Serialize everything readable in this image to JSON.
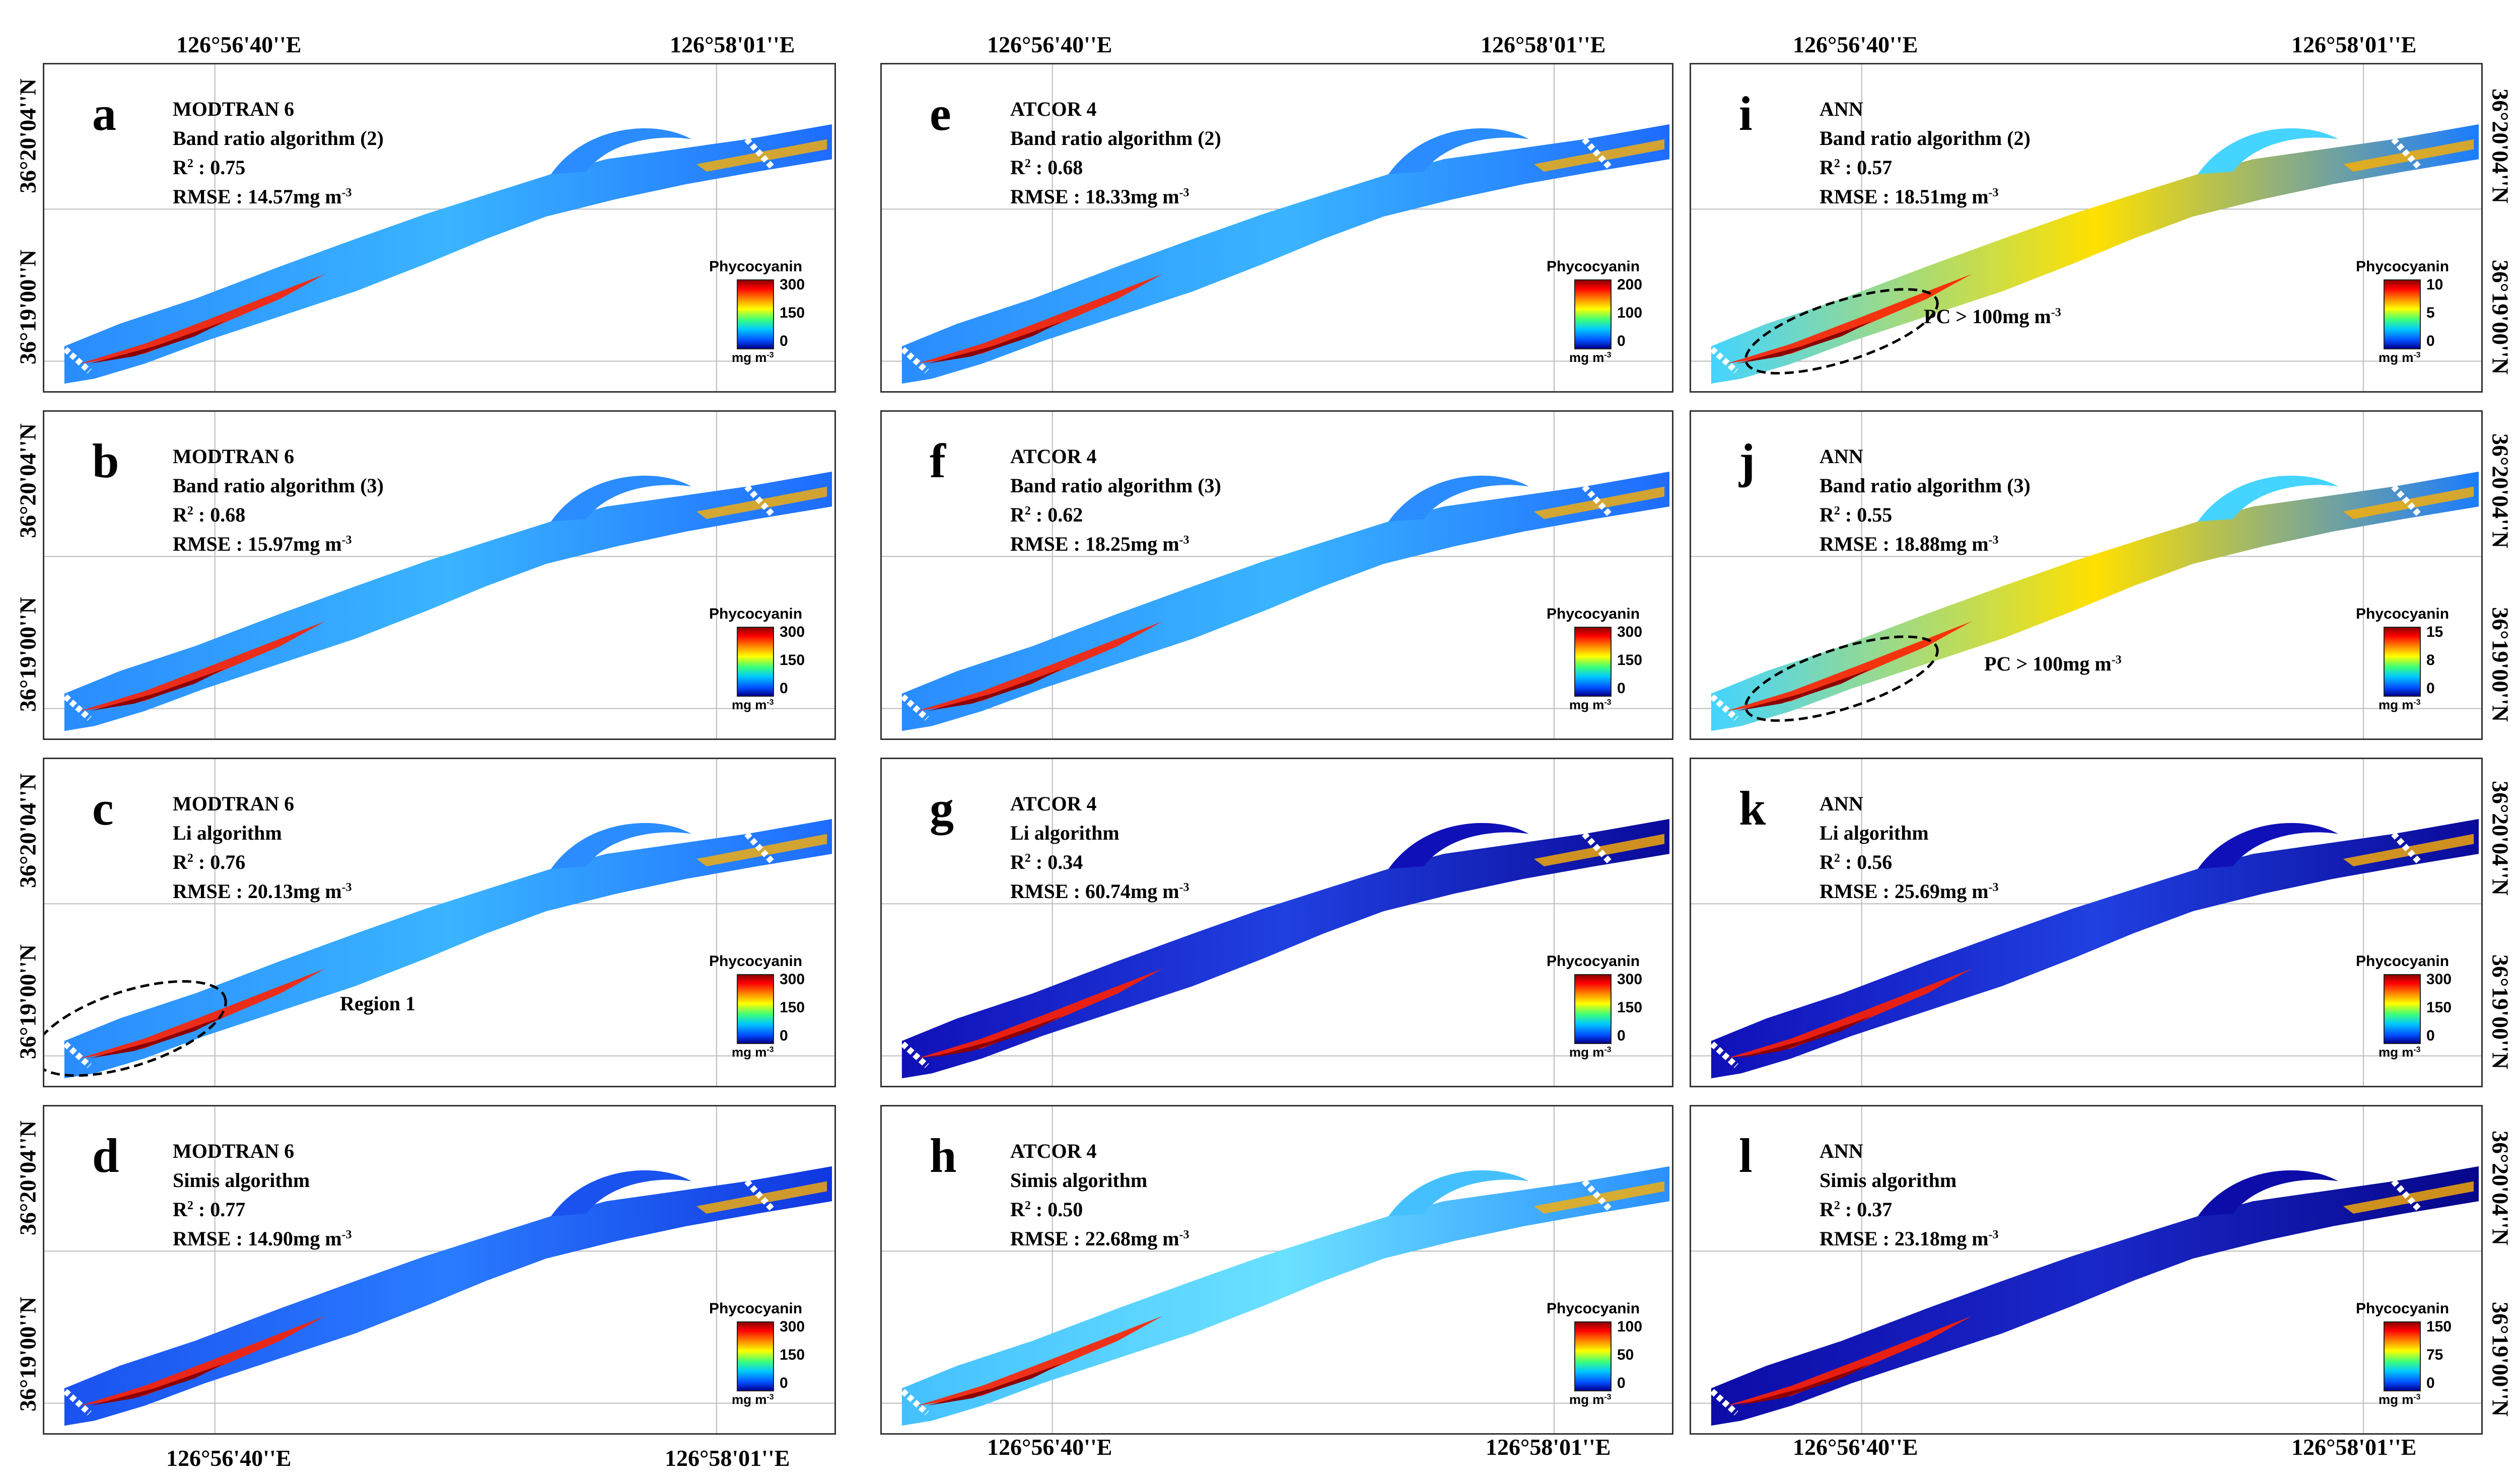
{
  "coords": {
    "lon_west": "126°56'40''E",
    "lon_east": "126°58'01''E",
    "lat_north": "36°20'04''N",
    "lat_south": "36°19'00''N"
  },
  "legend_title": "Phycocyanin",
  "legend_unit_base": "mg m",
  "legend_unit_exp": "-3",
  "rmse_exp": "-3",
  "panels": [
    {
      "letter": "a",
      "sensor": "MODTRAN 6",
      "algorithm": "Band ratio algorithm (2)",
      "r2_label": "R",
      "r2_sup": "2",
      "r2_value": " : 0.75",
      "rmse": "RMSE : 14.57mg m",
      "scale": [
        "300",
        "150",
        "0"
      ],
      "style": "low"
    },
    {
      "letter": "b",
      "sensor": "MODTRAN 6",
      "algorithm": "Band ratio algorithm (3)",
      "r2_label": "R",
      "r2_sup": "2",
      "r2_value": " : 0.68",
      "rmse": "RMSE : 15.97mg m",
      "scale": [
        "300",
        "150",
        "0"
      ],
      "style": "low"
    },
    {
      "letter": "c",
      "sensor": "MODTRAN 6",
      "algorithm": "Li algorithm",
      "r2_label": "R",
      "r2_sup": "2",
      "r2_value": " : 0.76",
      "rmse": "RMSE : 20.13mg m",
      "scale": [
        "300",
        "150",
        "0"
      ],
      "style": "low"
    },
    {
      "letter": "d",
      "sensor": "MODTRAN 6",
      "algorithm": "Simis algorithm",
      "r2_label": "R",
      "r2_sup": "2",
      "r2_value": " : 0.77",
      "rmse": "RMSE : 14.90mg m",
      "scale": [
        "300",
        "150",
        "0"
      ],
      "style": "vlow"
    },
    {
      "letter": "e",
      "sensor": "ATCOR 4",
      "algorithm": "Band ratio algorithm (2)",
      "r2_label": "R",
      "r2_sup": "2",
      "r2_value": " : 0.68",
      "rmse": "RMSE : 18.33mg m",
      "scale": [
        "200",
        "100",
        "0"
      ],
      "style": "low"
    },
    {
      "letter": "f",
      "sensor": "ATCOR 4",
      "algorithm": "Band ratio algorithm (3)",
      "r2_label": "R",
      "r2_sup": "2",
      "r2_value": " : 0.62",
      "rmse": "RMSE : 18.25mg m",
      "scale": [
        "300",
        "150",
        "0"
      ],
      "style": "low"
    },
    {
      "letter": "g",
      "sensor": "ATCOR 4",
      "algorithm": "Li algorithm",
      "r2_label": "R",
      "r2_sup": "2",
      "r2_value": " : 0.34",
      "rmse": "RMSE : 60.74mg m",
      "scale": [
        "300",
        "150",
        "0"
      ],
      "style": "dark"
    },
    {
      "letter": "h",
      "sensor": "ATCOR 4",
      "algorithm": "Simis algorithm",
      "r2_label": "R",
      "r2_sup": "2",
      "r2_value": " : 0.50",
      "rmse": "RMSE : 22.68mg m",
      "scale": [
        "100",
        "50",
        "0"
      ],
      "style": "mid"
    },
    {
      "letter": "i",
      "sensor": "ANN",
      "algorithm": "Band ratio algorithm (2)",
      "r2_label": "R",
      "r2_sup": "2",
      "r2_value": " : 0.57",
      "rmse": "RMSE : 18.51mg m",
      "scale": [
        "10",
        "5",
        "0"
      ],
      "style": "high"
    },
    {
      "letter": "j",
      "sensor": "ANN",
      "algorithm": "Band ratio algorithm (3)",
      "r2_label": "R",
      "r2_sup": "2",
      "r2_value": " : 0.55",
      "rmse": "RMSE : 18.88mg m",
      "scale": [
        "15",
        "8",
        "0"
      ],
      "style": "high"
    },
    {
      "letter": "k",
      "sensor": "ANN",
      "algorithm": "Li algorithm",
      "r2_label": "R",
      "r2_sup": "2",
      "r2_value": " : 0.56",
      "rmse": "RMSE : 25.69mg m",
      "scale": [
        "300",
        "150",
        "0"
      ],
      "style": "dark"
    },
    {
      "letter": "l",
      "sensor": "ANN",
      "algorithm": "Simis algorithm",
      "r2_label": "R",
      "r2_sup": "2",
      "r2_value": " : 0.37",
      "rmse": "RMSE : 23.18mg m",
      "scale": [
        "150",
        "75",
        "0"
      ],
      "style": "vdark"
    }
  ],
  "annotations": {
    "region1": "Region 1",
    "pc_threshold": "PC > 100mg m",
    "pc_threshold_exp": "-3"
  },
  "colors": {
    "low": [
      "#1e6cff",
      "#2a8cff",
      "#3ab4ff"
    ],
    "vlow": [
      "#1036e0",
      "#1a52f0",
      "#2a7cff"
    ],
    "dark": [
      "#0a0a9a",
      "#1010b8",
      "#2040e0"
    ],
    "vdark": [
      "#06068a",
      "#0c0ca8",
      "#1a28c8"
    ],
    "mid": [
      "#2a90ff",
      "#44c0ff",
      "#6ae0ff"
    ],
    "high": [
      "#1a7cff",
      "#44d4ff",
      "#ffe000"
    ],
    "hot": [
      "#8b0000",
      "#ff2000",
      "#ffb000"
    ]
  }
}
